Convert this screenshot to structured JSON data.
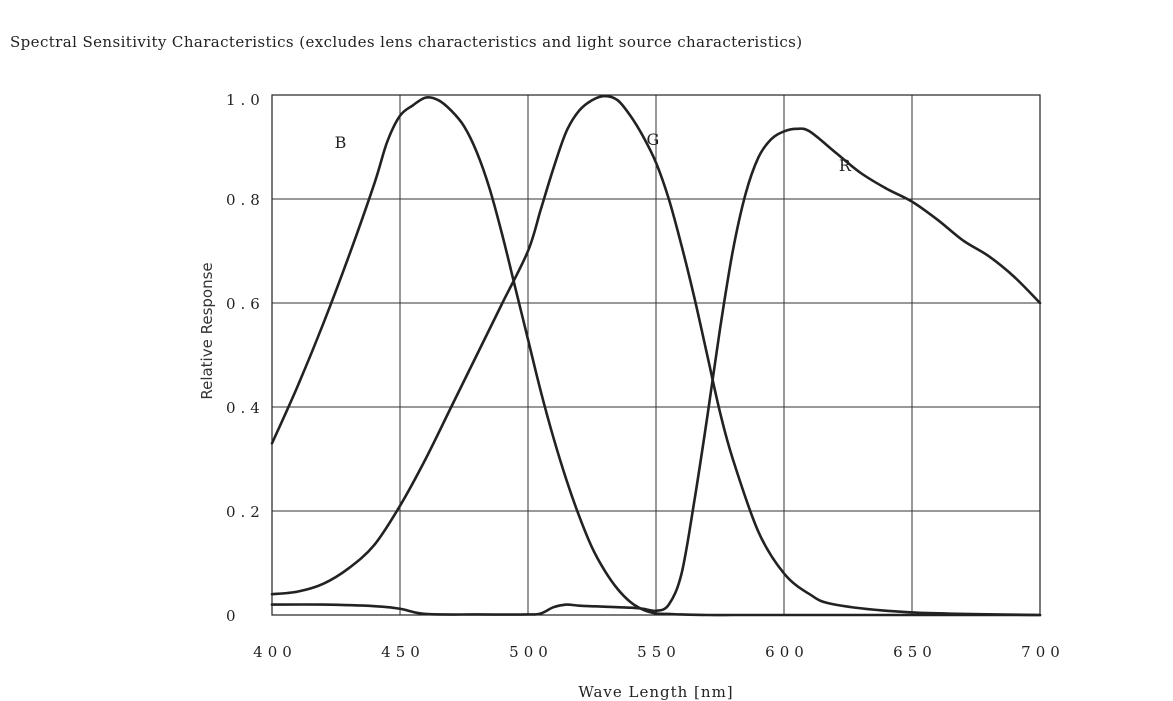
{
  "page": {
    "title": "Spectral Sensitivity Characteristics (excludes lens characteristics and light source characteristics)"
  },
  "chart_data": {
    "type": "line",
    "title": "Spectral Sensitivity Characteristics (excludes lens characteristics and light source characteristics)",
    "xlabel": "Wave Length [nm]",
    "ylabel": "Relative Response",
    "xlim": [
      400,
      700
    ],
    "ylim": [
      0,
      1.0
    ],
    "x_ticks": [
      400,
      450,
      500,
      550,
      600,
      650,
      700
    ],
    "x_tick_labels": [
      "400",
      "450",
      "500",
      "550",
      "600",
      "650",
      "700"
    ],
    "y_ticks": [
      0,
      0.2,
      0.4,
      0.6,
      0.8,
      1.0
    ],
    "y_tick_labels": [
      "0",
      "0.2",
      "0.4",
      "0.6",
      "0.8",
      "1.0"
    ],
    "grid": true,
    "line_color": "#222222",
    "series": [
      {
        "name": "B",
        "label": "B",
        "label_at": [
          413.5,
          0.91
        ],
        "x": [
          400,
          410,
          420,
          430,
          440,
          445,
          450,
          455,
          460,
          465,
          470,
          475,
          480,
          485,
          490,
          495,
          500,
          505,
          510,
          515,
          520,
          525,
          530,
          535,
          540,
          545,
          550,
          555,
          560,
          570,
          580,
          590,
          600,
          620,
          650,
          680,
          700
        ],
        "values": [
          0.33,
          0.44,
          0.56,
          0.69,
          0.83,
          0.91,
          0.96,
          0.98,
          0.995,
          0.99,
          0.97,
          0.94,
          0.89,
          0.82,
          0.73,
          0.63,
          0.53,
          0.43,
          0.34,
          0.26,
          0.19,
          0.13,
          0.085,
          0.05,
          0.025,
          0.01,
          0.003,
          0.002,
          0.001,
          0,
          0,
          0,
          0,
          0,
          0,
          0,
          0
        ]
      },
      {
        "name": "G",
        "label": "G",
        "label_at": [
          535.5,
          0.915
        ],
        "x": [
          400,
          410,
          420,
          430,
          440,
          450,
          460,
          470,
          480,
          490,
          500,
          505,
          510,
          515,
          520,
          525,
          530,
          535,
          540,
          545,
          550,
          555,
          560,
          565,
          570,
          575,
          580,
          590,
          600,
          610,
          620,
          650,
          700
        ],
        "values": [
          0.04,
          0.045,
          0.06,
          0.09,
          0.135,
          0.21,
          0.3,
          0.4,
          0.5,
          0.6,
          0.7,
          0.78,
          0.86,
          0.93,
          0.97,
          0.99,
          0.998,
          0.99,
          0.96,
          0.92,
          0.87,
          0.8,
          0.71,
          0.61,
          0.5,
          0.39,
          0.3,
          0.16,
          0.08,
          0.04,
          0.02,
          0.005,
          0
        ]
      },
      {
        "name": "R",
        "label": "R",
        "label_at": [
          610.5,
          0.865
        ],
        "x": [
          400,
          420,
          440,
          450,
          460,
          480,
          500,
          505,
          510,
          515,
          520,
          530,
          540,
          545,
          550,
          555,
          560,
          565,
          570,
          575,
          580,
          585,
          590,
          595,
          600,
          605,
          610,
          620,
          630,
          640,
          650,
          660,
          670,
          680,
          690,
          700
        ],
        "values": [
          0.02,
          0.02,
          0.017,
          0.012,
          0.002,
          0.001,
          0.001,
          0.003,
          0.015,
          0.02,
          0.018,
          0.016,
          0.014,
          0.012,
          0.008,
          0.02,
          0.08,
          0.22,
          0.38,
          0.55,
          0.7,
          0.81,
          0.88,
          0.915,
          0.93,
          0.935,
          0.93,
          0.89,
          0.85,
          0.82,
          0.795,
          0.76,
          0.72,
          0.69,
          0.65,
          0.6
        ]
      }
    ]
  }
}
